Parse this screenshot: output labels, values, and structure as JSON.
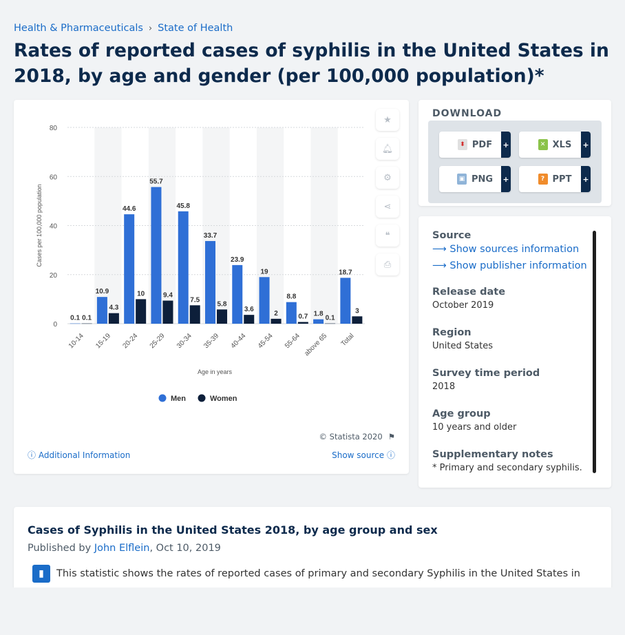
{
  "breadcrumb": {
    "item1": "Health & Pharmaceuticals",
    "sep": "›",
    "item2": "State of Health"
  },
  "title": "Rates of reported cases of syphilis in the United States in 2018, by age and gender (per 100,000 population)*",
  "chart_data": {
    "type": "bar",
    "categories": [
      "10-14",
      "15-19",
      "20-24",
      "25-29",
      "30-34",
      "35-39",
      "40-44",
      "45-54",
      "55-64",
      "above 65",
      "Total"
    ],
    "series": [
      {
        "name": "Men",
        "values": [
          0.1,
          10.9,
          44.6,
          55.7,
          45.8,
          33.7,
          23.9,
          19,
          8.8,
          1.8,
          18.7
        ],
        "color": "#2f6fd6"
      },
      {
        "name": "Women",
        "values": [
          0.1,
          4.3,
          10,
          9.4,
          7.5,
          5.8,
          3.6,
          2,
          0.7,
          0.1,
          3
        ],
        "color": "#0d1f3a"
      }
    ],
    "xlabel": "Age in years",
    "ylabel": "Cases per 100,000 population",
    "ylim": [
      0,
      80
    ],
    "yticks": [
      0,
      20,
      40,
      60,
      80
    ],
    "legend_position": "bottom",
    "grid": true
  },
  "chart_footer": {
    "copyright": "© Statista 2020",
    "additional_info": "Additional Information",
    "show_source": "Show source"
  },
  "download": {
    "title": "DOWNLOAD",
    "pdf": "PDF",
    "xls": "XLS",
    "png": "PNG",
    "ppt": "PPT",
    "plus": "+"
  },
  "info": {
    "source_label": "Source",
    "sources_link": "Show sources information",
    "publisher_link": "Show publisher information",
    "release_label": "Release date",
    "release_value": "October 2019",
    "region_label": "Region",
    "region_value": "United States",
    "survey_label": "Survey time period",
    "survey_value": "2018",
    "age_label": "Age group",
    "age_value": "10 years and older",
    "notes_label": "Supplementary notes",
    "notes_value": "* Primary and secondary syphilis."
  },
  "description": {
    "title": "Cases of Syphilis in the United States 2018, by age group and sex",
    "published_by": "Published by",
    "author": "John Elflein",
    "date": ", Oct 10, 2019",
    "text": "This statistic shows the rates of reported cases of primary and secondary Syphilis in the United States in"
  }
}
